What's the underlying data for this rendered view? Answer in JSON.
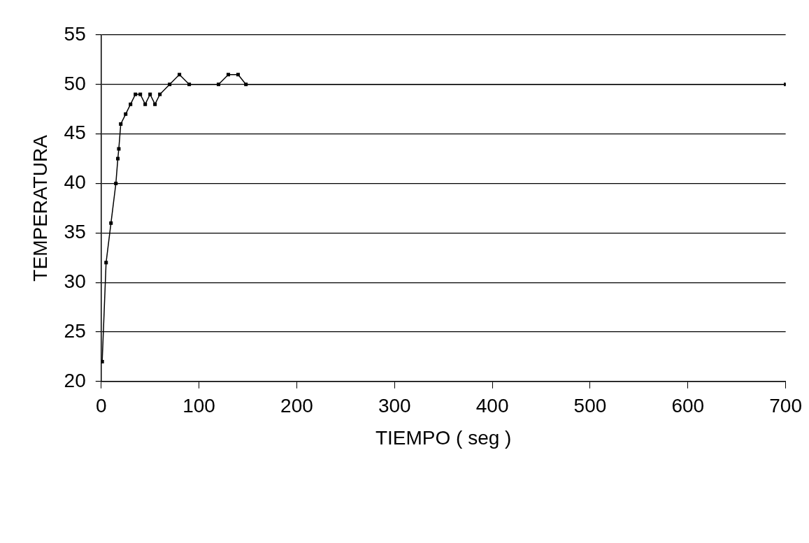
{
  "chart_data": {
    "type": "line",
    "xlabel": "TIEMPO ( seg )",
    "ylabel": "TEMPERATURA",
    "x": [
      1,
      5,
      10,
      15,
      17,
      18,
      20,
      25,
      30,
      35,
      40,
      45,
      50,
      55,
      60,
      70,
      80,
      90,
      120,
      130,
      140,
      148,
      700
    ],
    "series": [
      {
        "color": "#000000",
        "values": [
          22,
          32,
          36,
          40,
          42.5,
          43.5,
          46,
          47,
          48,
          49,
          49,
          48,
          49,
          48,
          49,
          50,
          51,
          50,
          50,
          51,
          51,
          50,
          50
        ]
      }
    ],
    "xlim": [
      0,
      700
    ],
    "xticks": [
      0,
      100,
      200,
      300,
      400,
      500,
      600,
      700
    ],
    "ylim": [
      20,
      55
    ],
    "yticks": [
      20,
      25,
      30,
      35,
      40,
      45,
      50,
      55
    ],
    "grid": "y",
    "legend": false,
    "marker": "square",
    "line_style": "solid"
  }
}
